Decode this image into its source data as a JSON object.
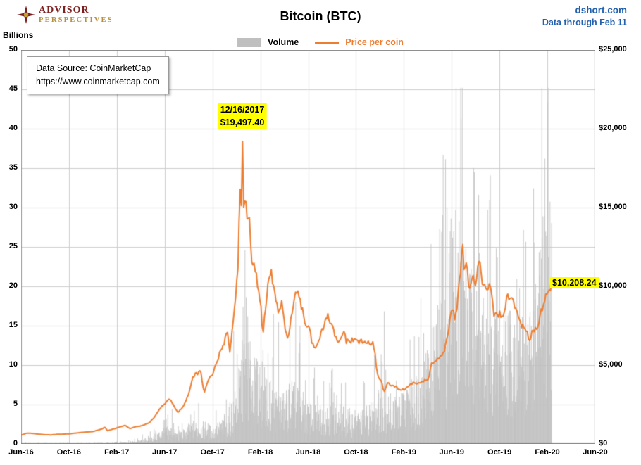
{
  "header": {
    "logo_line1": "ADVISOR",
    "logo_line2": "PERSPECTIVES",
    "title": "Bitcoin (BTC)",
    "site": "dshort.com",
    "data_through": "Data through Feb 11"
  },
  "legend": {
    "volume_label": "Volume",
    "price_label": "Price per coin"
  },
  "left_axis_unit": "Billions",
  "annotations": {
    "source_line1": "Data Source: CoinMarketCap",
    "source_line2": "https://www.coinmarketcap.com",
    "peak_date": "12/16/2017",
    "peak_price": "$19,497.40",
    "last_price": "$10,208.24"
  },
  "colors": {
    "price": "#ed7d31",
    "volume": "#c0c0c0",
    "grid": "#cccccc",
    "border": "#7f7f7f",
    "blue": "#2361ae",
    "highlight": "#ffff00",
    "logo_red": "#7b1f1f",
    "logo_gold": "#b5913e"
  },
  "chart_data": {
    "type": "combo-bar-line",
    "title": "Bitcoin (BTC)",
    "end_month": 44.35,
    "x_axis": {
      "range_months": [
        0,
        48
      ],
      "tick_months": [
        0,
        4,
        8,
        12,
        16,
        20,
        24,
        28,
        32,
        36,
        40,
        44,
        48
      ],
      "labels": [
        "Jun-16",
        "Oct-16",
        "Feb-17",
        "Jun-17",
        "Oct-17",
        "Feb-18",
        "Jun-18",
        "Oct-18",
        "Feb-19",
        "Jun-19",
        "Oct-19",
        "Feb-20",
        "Jun-20"
      ]
    },
    "left_axis": {
      "title": "Billions",
      "range": [
        0,
        50
      ],
      "ticks": [
        0,
        5,
        10,
        15,
        20,
        25,
        30,
        35,
        40,
        45,
        50
      ],
      "series": "Volume (billions USD, daily)"
    },
    "right_axis": {
      "range": [
        0,
        25000
      ],
      "ticks": [
        0,
        5000,
        10000,
        15000,
        20000,
        25000
      ],
      "tick_labels": [
        "$0",
        "$5,000",
        "$10,000",
        "$15,000",
        "$20,000",
        "$25,000"
      ],
      "series": "Price per coin (USD)"
    },
    "price_series": {
      "name": "Price per coin",
      "peak": {
        "date": "12/16/2017",
        "value": 19497.4
      },
      "last": {
        "date": "Feb 11",
        "value": 10208.24
      },
      "points": [
        [
          0,
          560
        ],
        [
          0.5,
          690
        ],
        [
          1,
          665
        ],
        [
          1.5,
          620
        ],
        [
          2,
          580
        ],
        [
          2.5,
          575
        ],
        [
          3,
          607
        ],
        [
          4,
          635
        ],
        [
          5,
          725
        ],
        [
          6,
          790
        ],
        [
          6.8,
          950
        ],
        [
          7,
          1090
        ],
        [
          7.2,
          830
        ],
        [
          7.6,
          920
        ],
        [
          8,
          1010
        ],
        [
          8.7,
          1180
        ],
        [
          9.1,
          960
        ],
        [
          9.5,
          1080
        ],
        [
          10,
          1130
        ],
        [
          10.7,
          1330
        ],
        [
          11.2,
          1750
        ],
        [
          11.6,
          2250
        ],
        [
          12,
          2550
        ],
        [
          12.4,
          2870
        ],
        [
          12.7,
          2520
        ],
        [
          13.1,
          1990
        ],
        [
          13.5,
          2320
        ],
        [
          13.8,
          2780
        ],
        [
          14.1,
          3400
        ],
        [
          14.4,
          4330
        ],
        [
          15,
          4600
        ],
        [
          15.3,
          3260
        ],
        [
          15.7,
          4100
        ],
        [
          16,
          4400
        ],
        [
          16.6,
          5700
        ],
        [
          17,
          6500
        ],
        [
          17.2,
          7300
        ],
        [
          17.45,
          5900
        ],
        [
          17.8,
          8200
        ],
        [
          18,
          10000
        ],
        [
          18.15,
          11600
        ],
        [
          18.3,
          16600
        ],
        [
          18.38,
          13900
        ],
        [
          18.5,
          19497
        ],
        [
          18.62,
          14300
        ],
        [
          18.75,
          15600
        ],
        [
          18.9,
          13900
        ],
        [
          19.1,
          14300
        ],
        [
          19.3,
          11600
        ],
        [
          19.5,
          11200
        ],
        [
          19.8,
          10100
        ],
        [
          20.1,
          8300
        ],
        [
          20.2,
          6950
        ],
        [
          20.45,
          8600
        ],
        [
          20.7,
          10400
        ],
        [
          20.9,
          10900
        ],
        [
          21.2,
          9600
        ],
        [
          21.5,
          8300
        ],
        [
          21.8,
          8900
        ],
        [
          22.1,
          7000
        ],
        [
          22.3,
          6800
        ],
        [
          22.6,
          8100
        ],
        [
          22.9,
          9350
        ],
        [
          23.1,
          9600
        ],
        [
          23.5,
          8500
        ],
        [
          23.8,
          7500
        ],
        [
          24.1,
          7550
        ],
        [
          24.3,
          6450
        ],
        [
          24.6,
          6150
        ],
        [
          24.9,
          6600
        ],
        [
          25.3,
          7400
        ],
        [
          25.6,
          8180
        ],
        [
          25.9,
          7600
        ],
        [
          26.2,
          7000
        ],
        [
          26.5,
          6300
        ],
        [
          26.8,
          6750
        ],
        [
          27,
          7250
        ],
        [
          27.2,
          6450
        ],
        [
          27.6,
          6550
        ],
        [
          28,
          6590
        ],
        [
          28.5,
          6450
        ],
        [
          29,
          6420
        ],
        [
          29.4,
          6350
        ],
        [
          29.6,
          5600
        ],
        [
          29.8,
          4350
        ],
        [
          30.1,
          4050
        ],
        [
          30.35,
          3250
        ],
        [
          30.6,
          3900
        ],
        [
          30.8,
          3750
        ],
        [
          31.2,
          3650
        ],
        [
          31.6,
          3480
        ],
        [
          32,
          3420
        ],
        [
          32.3,
          3650
        ],
        [
          32.7,
          3830
        ],
        [
          33.2,
          3880
        ],
        [
          33.7,
          3980
        ],
        [
          34.1,
          4120
        ],
        [
          34.25,
          5050
        ],
        [
          34.7,
          5280
        ],
        [
          35.1,
          5500
        ],
        [
          35.4,
          5800
        ],
        [
          35.7,
          7200
        ],
        [
          35.95,
          8200
        ],
        [
          36.1,
          8550
        ],
        [
          36.25,
          7750
        ],
        [
          36.5,
          9100
        ],
        [
          36.75,
          11000
        ],
        [
          36.9,
          12900
        ],
        [
          37.05,
          11000
        ],
        [
          37.25,
          11900
        ],
        [
          37.45,
          9800
        ],
        [
          37.7,
          10700
        ],
        [
          38,
          10200
        ],
        [
          38.3,
          11800
        ],
        [
          38.6,
          10200
        ],
        [
          38.9,
          9600
        ],
        [
          39.2,
          10300
        ],
        [
          39.5,
          8300
        ],
        [
          39.8,
          8150
        ],
        [
          40.1,
          8250
        ],
        [
          40.35,
          7950
        ],
        [
          40.6,
          9500
        ],
        [
          40.8,
          9150
        ],
        [
          41.05,
          9300
        ],
        [
          41.3,
          8700
        ],
        [
          41.6,
          8050
        ],
        [
          41.9,
          7450
        ],
        [
          42.2,
          7150
        ],
        [
          42.5,
          6650
        ],
        [
          42.8,
          7300
        ],
        [
          43.1,
          7250
        ],
        [
          43.35,
          8050
        ],
        [
          43.6,
          8750
        ],
        [
          43.85,
          9350
        ],
        [
          44.05,
          9450
        ],
        [
          44.2,
          9850
        ],
        [
          44.35,
          10208
        ]
      ]
    },
    "volume_series": {
      "name": "Volume",
      "unit": "billions USD",
      "anchors": [
        [
          0,
          0.07
        ],
        [
          3,
          0.07
        ],
        [
          6,
          0.09
        ],
        [
          8,
          0.15
        ],
        [
          9,
          0.25
        ],
        [
          10,
          0.4
        ],
        [
          10.8,
          0.7
        ],
        [
          11.5,
          1.4
        ],
        [
          12,
          1.7
        ],
        [
          12.5,
          1.9
        ],
        [
          13,
          1.3
        ],
        [
          13.8,
          1.6
        ],
        [
          14.2,
          2.6
        ],
        [
          15,
          2.1
        ],
        [
          15.4,
          2.4
        ],
        [
          16,
          1.7
        ],
        [
          16.8,
          2.6
        ],
        [
          17.2,
          3.6
        ],
        [
          17.6,
          4.5
        ],
        [
          18,
          6
        ],
        [
          18.4,
          9.5
        ],
        [
          18.6,
          11.5
        ],
        [
          19,
          11
        ],
        [
          19.3,
          9.5
        ],
        [
          19.6,
          8.5
        ],
        [
          20.2,
          9.5
        ],
        [
          20.6,
          7
        ],
        [
          21,
          6.2
        ],
        [
          21.5,
          5.6
        ],
        [
          22,
          5.2
        ],
        [
          22.5,
          6.8
        ],
        [
          23,
          6.2
        ],
        [
          23.6,
          5.2
        ],
        [
          24,
          4.4
        ],
        [
          24.6,
          4
        ],
        [
          25.2,
          4.3
        ],
        [
          26,
          4.4
        ],
        [
          26.6,
          4.1
        ],
        [
          27.2,
          3.7
        ],
        [
          28,
          3.5
        ],
        [
          28.6,
          3.6
        ],
        [
          29.2,
          4.3
        ],
        [
          29.7,
          5.6
        ],
        [
          30.3,
          5.9
        ],
        [
          30.8,
          5.2
        ],
        [
          31.4,
          5.1
        ],
        [
          32,
          5.6
        ],
        [
          32.6,
          6.4
        ],
        [
          33.2,
          8.2
        ],
        [
          33.8,
          9.5
        ],
        [
          34.2,
          11.5
        ],
        [
          34.7,
          13.5
        ],
        [
          35.1,
          15.5
        ],
        [
          35.5,
          19
        ],
        [
          35.9,
          23.5
        ],
        [
          36.2,
          24.5
        ],
        [
          36.6,
          25.5
        ],
        [
          37,
          22
        ],
        [
          37.4,
          19
        ],
        [
          37.8,
          17
        ],
        [
          38.2,
          16
        ],
        [
          38.7,
          14.5
        ],
        [
          39.2,
          13
        ],
        [
          39.7,
          13.8
        ],
        [
          40.2,
          12.5
        ],
        [
          40.6,
          16
        ],
        [
          41,
          14.5
        ],
        [
          41.5,
          13.5
        ],
        [
          42,
          12.8
        ],
        [
          42.5,
          14.5
        ],
        [
          43,
          16.5
        ],
        [
          43.4,
          21
        ],
        [
          43.8,
          24
        ],
        [
          44.1,
          26
        ],
        [
          44.35,
          27
        ]
      ]
    },
    "grid": true,
    "legend_position": "top-center"
  }
}
